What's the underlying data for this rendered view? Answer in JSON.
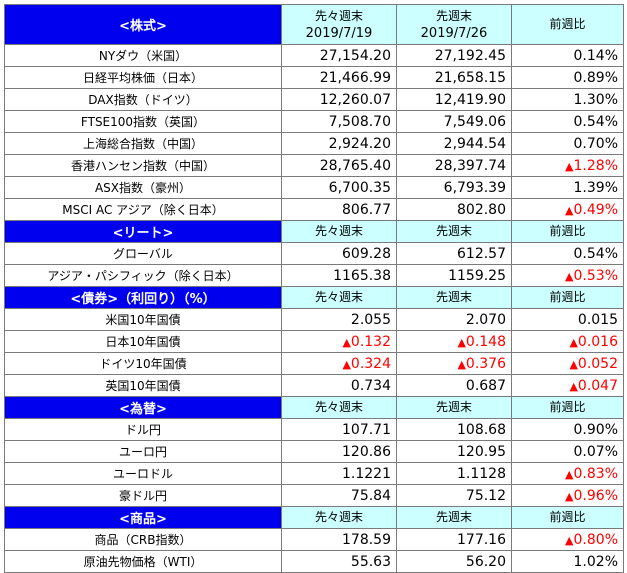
{
  "sections": [
    {
      "title": "<株式>",
      "headers": [
        "先々週末",
        "先週末",
        "前週比"
      ],
      "header_dates": [
        "2019/7/19",
        "2019/7/26",
        ""
      ],
      "rows": [
        {
          "name": "NYダウ（米国）",
          "prev2": "27,154.20",
          "prev": "27,192.45",
          "change": "0.14%",
          "neg": []
        },
        {
          "name": "日経平均株価（日本）",
          "prev2": "21,466.99",
          "prev": "21,658.15",
          "change": "0.89%",
          "neg": []
        },
        {
          "name": "DAX指数（ドイツ）",
          "prev2": "12,260.07",
          "prev": "12,419.90",
          "change": "1.30%",
          "neg": []
        },
        {
          "name": "FTSE100指数（英国）",
          "prev2": "7,508.70",
          "prev": "7,549.06",
          "change": "0.54%",
          "neg": []
        },
        {
          "name": "上海総合指数（中国）",
          "prev2": "2,924.20",
          "prev": "2,944.54",
          "change": "0.70%",
          "neg": []
        },
        {
          "name": "香港ハンセン指数（中国）",
          "prev2": "28,765.40",
          "prev": "28,397.74",
          "change": "1.28%",
          "neg": [
            "change"
          ]
        },
        {
          "name": "ASX指数（豪州）",
          "prev2": "6,700.35",
          "prev": "6,793.39",
          "change": "1.39%",
          "neg": []
        },
        {
          "name": "MSCI AC アジア（除く日本）",
          "prev2": "806.77",
          "prev": "802.80",
          "change": "0.49%",
          "neg": [
            "change"
          ]
        }
      ]
    },
    {
      "title": "<リート>",
      "headers": [
        "先々週末",
        "先週末",
        "前週比"
      ],
      "rows": [
        {
          "name": "グローバル",
          "prev2": "609.28",
          "prev": "612.57",
          "change": "0.54%",
          "neg": []
        },
        {
          "name": "アジア・パシフィック（除く日本）",
          "prev2": "1165.38",
          "prev": "1159.25",
          "change": "0.53%",
          "neg": [
            "change"
          ]
        }
      ]
    },
    {
      "title": "<債券>（利回り）（%）",
      "headers": [
        "先々週末",
        "先週末",
        "前週比"
      ],
      "rows": [
        {
          "name": "米国10年国債",
          "prev2": "2.055",
          "prev": "2.070",
          "change": "0.015",
          "neg": []
        },
        {
          "name": "日本10年国債",
          "prev2": "0.132",
          "prev": "0.148",
          "change": "0.016",
          "neg": [
            "prev2",
            "prev",
            "change"
          ]
        },
        {
          "name": "ドイツ10年国債",
          "prev2": "0.324",
          "prev": "0.376",
          "change": "0.052",
          "neg": [
            "prev2",
            "prev",
            "change"
          ]
        },
        {
          "name": "英国10年国債",
          "prev2": "0.734",
          "prev": "0.687",
          "change": "0.047",
          "neg": [
            "change"
          ]
        }
      ]
    },
    {
      "title": "<為替>",
      "headers": [
        "先々週末",
        "先週末",
        "前週比"
      ],
      "rows": [
        {
          "name": "ドル円",
          "prev2": "107.71",
          "prev": "108.68",
          "change": "0.90%",
          "neg": []
        },
        {
          "name": "ユーロ円",
          "prev2": "120.86",
          "prev": "120.95",
          "change": "0.07%",
          "neg": []
        },
        {
          "name": "ユーロドル",
          "prev2": "1.1221",
          "prev": "1.1128",
          "change": "0.83%",
          "neg": [
            "change"
          ]
        },
        {
          "name": "豪ドル円",
          "prev2": "75.84",
          "prev": "75.12",
          "change": "0.96%",
          "neg": [
            "change"
          ]
        }
      ]
    },
    {
      "title": "<商品>",
      "headers": [
        "先々週末",
        "先週末",
        "前週比"
      ],
      "rows": [
        {
          "name": "商品（CRB指数）",
          "prev2": "178.59",
          "prev": "177.16",
          "change": "0.80%",
          "neg": [
            "change"
          ]
        },
        {
          "name": "原油先物価格（WTI）",
          "prev2": "55.63",
          "prev": "56.20",
          "change": "1.02%",
          "neg": []
        }
      ]
    }
  ],
  "negative_marker": "▲",
  "colors": {
    "section_bg": "#0000ee",
    "header_bg": "#ccffff",
    "negative": "#ff0000",
    "border": "#7a7a7a"
  }
}
